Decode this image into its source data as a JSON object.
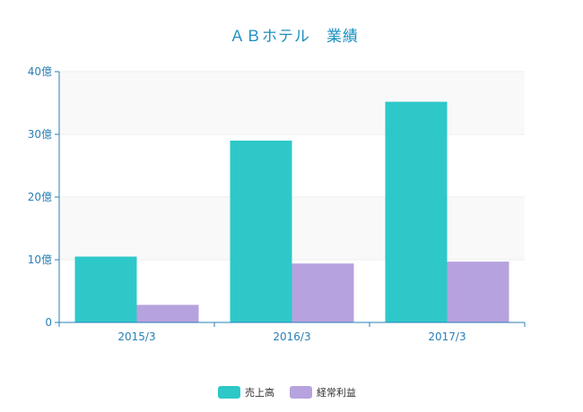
{
  "chart_data": {
    "type": "bar",
    "title": "ＡＢホテル　業績",
    "categories": [
      "2015/3",
      "2016/3",
      "2017/3"
    ],
    "series": [
      {
        "name": "売上高",
        "values": [
          10.5,
          29.0,
          35.2
        ],
        "color": "#2ec8c9"
      },
      {
        "name": "経常利益",
        "values": [
          2.8,
          9.4,
          9.7
        ],
        "color": "#b6a2de"
      }
    ],
    "ylim": [
      0,
      40
    ],
    "yticks": [
      "0",
      "10億",
      "20億",
      "30億",
      "40億"
    ],
    "grid": true,
    "legend_position": "bottom-center",
    "colors": {
      "axis": "#2a7fb5",
      "text": "#1a8fc0",
      "grid": "#eeeeee",
      "band": "#f9f9f9"
    }
  }
}
